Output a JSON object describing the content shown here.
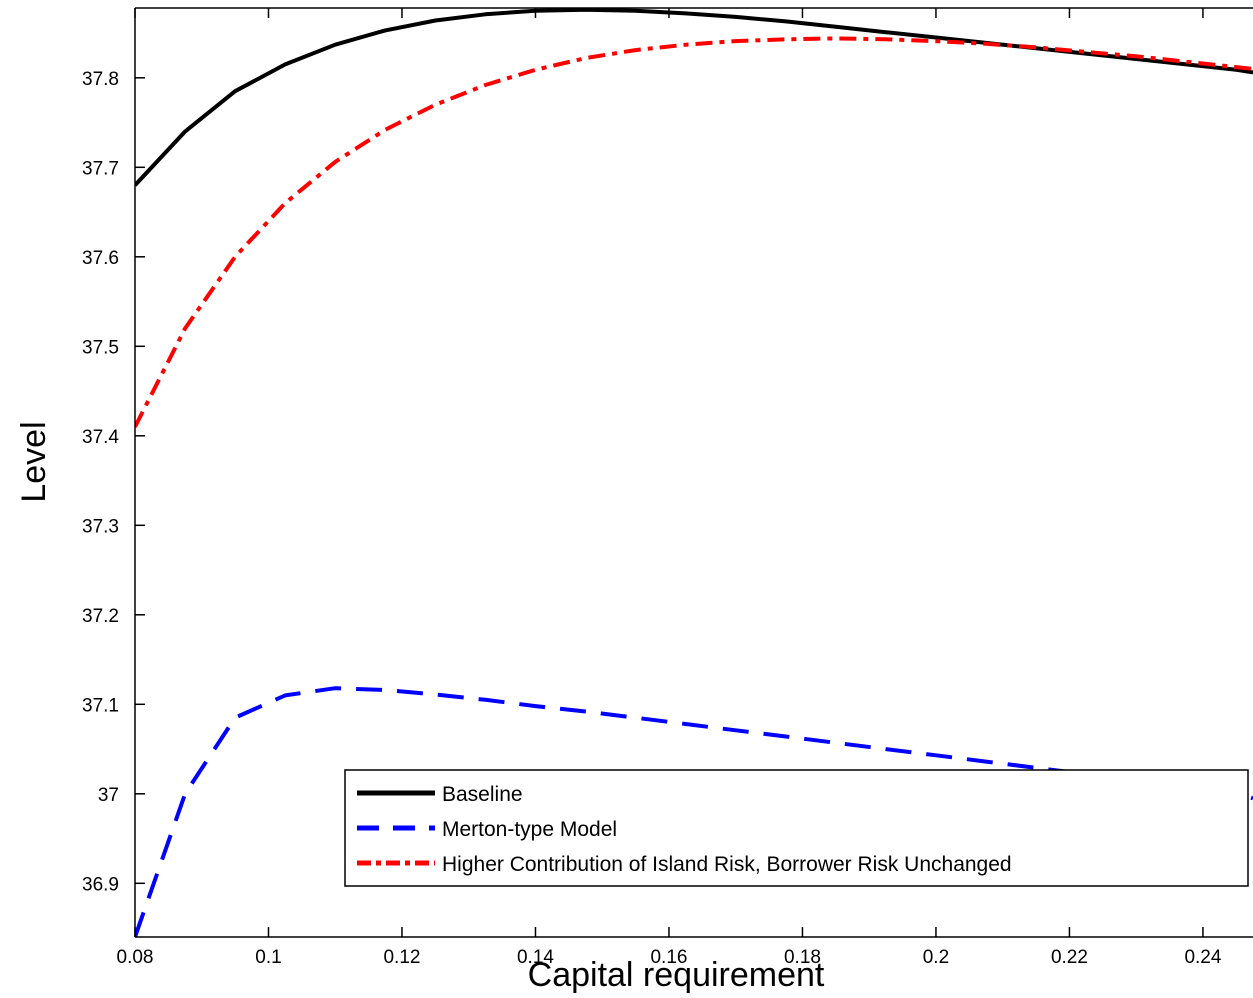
{
  "chart_data": {
    "type": "line",
    "xlabel": "Capital requirement",
    "ylabel": "Level",
    "xlim": [
      0.08,
      0.2475
    ],
    "ylim": [
      36.84,
      37.878
    ],
    "x_ticks": [
      0.08,
      0.1,
      0.12,
      0.14,
      0.16,
      0.18,
      0.2,
      0.22,
      0.24
    ],
    "x_tick_labels": [
      "0.08",
      "0.1",
      "0.12",
      "0.14",
      "0.16",
      "0.18",
      "0.2",
      "0.22",
      "0.24"
    ],
    "y_ticks": [
      36.9,
      37.0,
      37.1,
      37.2,
      37.3,
      37.4,
      37.5,
      37.6,
      37.7,
      37.8
    ],
    "y_tick_labels": [
      "36.9",
      "37",
      "37.1",
      "37.2",
      "37.3",
      "37.4",
      "37.5",
      "37.6",
      "37.7",
      "37.8"
    ],
    "grid": false,
    "legend_position": "bottom-right",
    "series": [
      {
        "name": "Baseline",
        "color": "#000000",
        "style": "solid",
        "x": [
          0.08,
          0.0875,
          0.095,
          0.1025,
          0.11,
          0.1175,
          0.125,
          0.1325,
          0.14,
          0.1475,
          0.155,
          0.1625,
          0.17,
          0.1775,
          0.185,
          0.1925,
          0.2,
          0.2075,
          0.215,
          0.2225,
          0.23,
          0.2375,
          0.245,
          0.2475
        ],
        "values": [
          37.68,
          37.74,
          37.785,
          37.815,
          37.837,
          37.853,
          37.864,
          37.871,
          37.875,
          37.876,
          37.875,
          37.872,
          37.868,
          37.863,
          37.857,
          37.851,
          37.845,
          37.839,
          37.833,
          37.827,
          37.821,
          37.815,
          37.809,
          37.806
        ]
      },
      {
        "name": "Merton-type Model",
        "color": "#0000ff",
        "style": "dashed",
        "x": [
          0.08,
          0.0875,
          0.095,
          0.1025,
          0.11,
          0.1175,
          0.125,
          0.1325,
          0.14,
          0.1475,
          0.155,
          0.1625,
          0.17,
          0.1775,
          0.185,
          0.1925,
          0.2,
          0.2075,
          0.215,
          0.2225,
          0.23,
          0.2375,
          0.245,
          0.2475
        ],
        "values": [
          36.84,
          37.0,
          37.085,
          37.11,
          37.118,
          37.116,
          37.111,
          37.105,
          37.098,
          37.092,
          37.085,
          37.078,
          37.071,
          37.064,
          37.057,
          37.05,
          37.043,
          37.036,
          37.029,
          37.022,
          37.015,
          37.008,
          37.001,
          36.995
        ]
      },
      {
        "name": "Higher Contribution of Island Risk, Borrower Risk Unchanged",
        "color": "#ff0000",
        "style": "dashdot",
        "x": [
          0.08,
          0.0875,
          0.095,
          0.1025,
          0.11,
          0.1175,
          0.125,
          0.1325,
          0.14,
          0.1475,
          0.155,
          0.1625,
          0.17,
          0.1775,
          0.185,
          0.1925,
          0.2,
          0.2075,
          0.215,
          0.2225,
          0.23,
          0.2375,
          0.245,
          0.2475
        ],
        "values": [
          37.41,
          37.52,
          37.6,
          37.66,
          37.706,
          37.742,
          37.77,
          37.792,
          37.809,
          37.822,
          37.831,
          37.837,
          37.841,
          37.843,
          37.844,
          37.843,
          37.841,
          37.838,
          37.834,
          37.829,
          37.824,
          37.818,
          37.812,
          37.81
        ]
      }
    ]
  }
}
